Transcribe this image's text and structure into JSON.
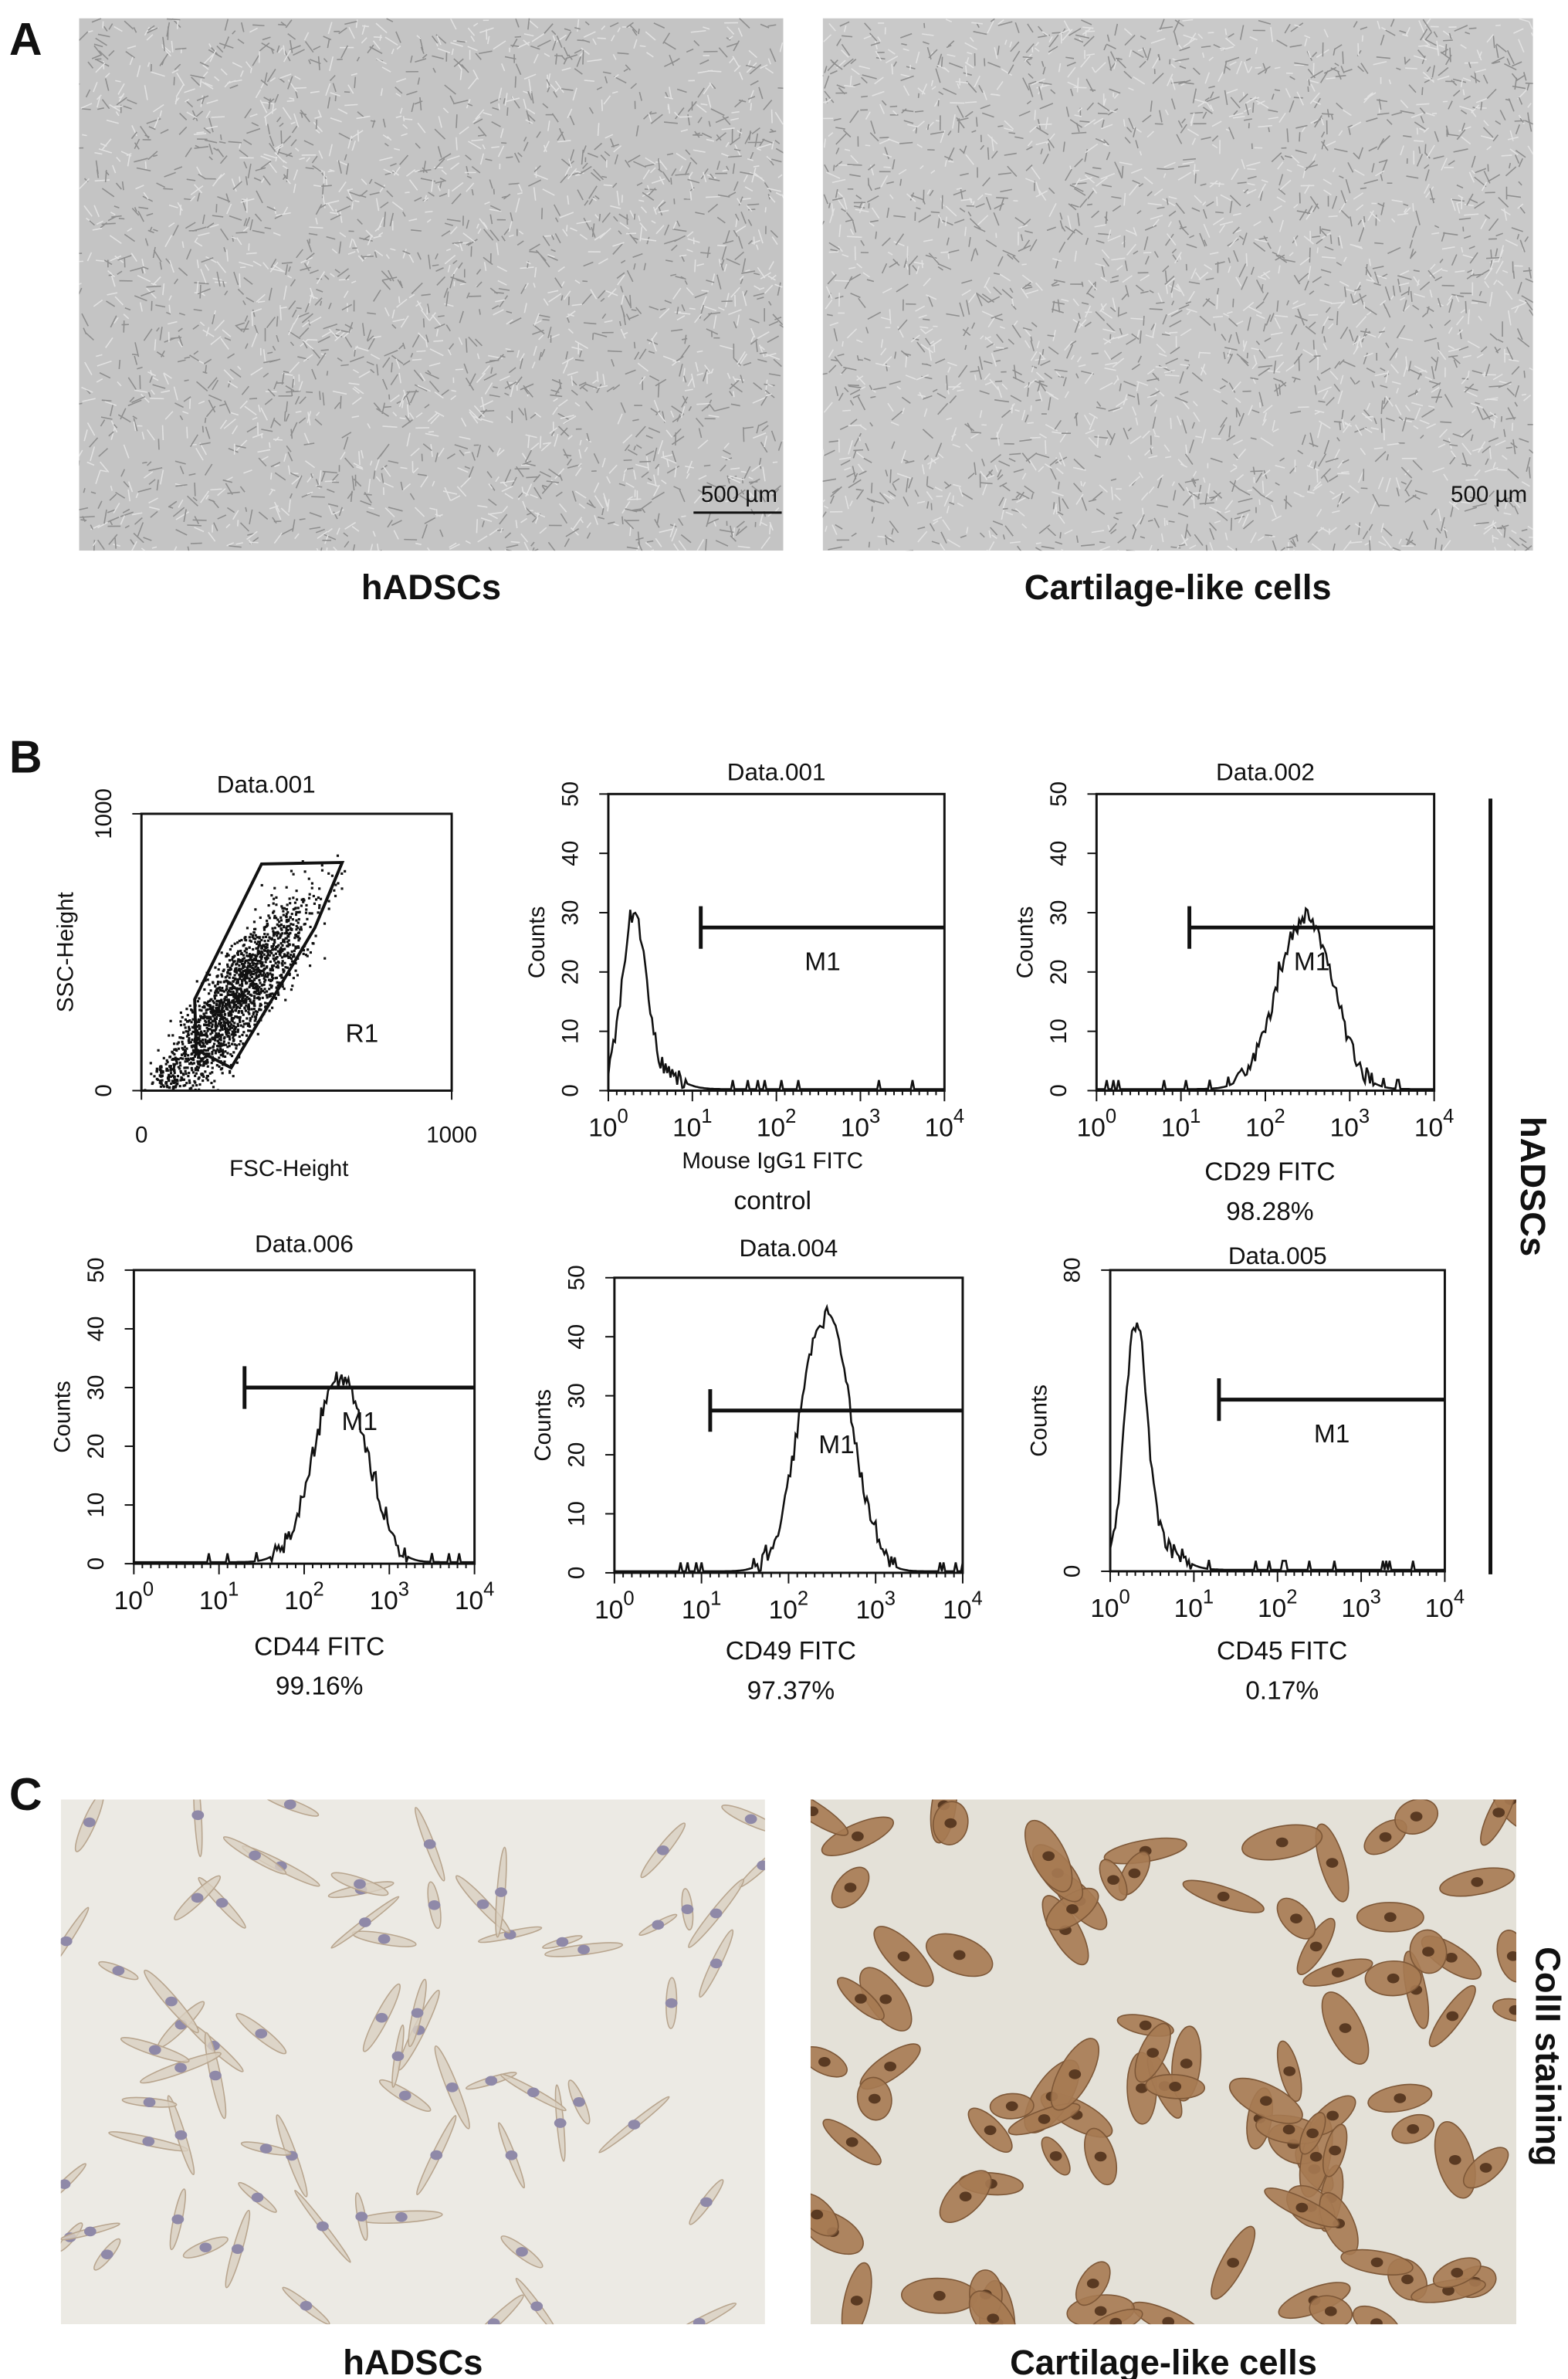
{
  "panel_a": {
    "label": "A",
    "images": [
      {
        "caption": "hADSCs",
        "scale_bar": "500 µm"
      },
      {
        "caption": "Cartilage-like cells",
        "scale_bar": "500 µm"
      }
    ]
  },
  "panel_b": {
    "label": "B",
    "side_label": "hADSCs",
    "scatter": {
      "title": "Data.001",
      "y_label": "SSC-Height",
      "x_label": "FSC-Height",
      "yticks": [
        "0",
        "1000"
      ],
      "xticks": [
        "0",
        "1000"
      ],
      "gate": "R1"
    },
    "histograms": [
      {
        "title": "Data.001",
        "y_label": "Counts",
        "yticks": [
          "0",
          "10",
          "20",
          "30",
          "40",
          "50"
        ],
        "xticks": [
          {
            "base": "10",
            "exp": "0"
          },
          {
            "base": "10",
            "exp": "1"
          },
          {
            "base": "10",
            "exp": "2"
          },
          {
            "base": "10",
            "exp": "3"
          },
          {
            "base": "10",
            "exp": "4"
          }
        ],
        "marker": "M1",
        "x_label": "Mouse IgG1 FITC",
        "note": "control"
      },
      {
        "title": "Data.002",
        "y_label": "Counts",
        "yticks": [
          "0",
          "10",
          "20",
          "30",
          "40",
          "50"
        ],
        "xticks": [
          {
            "base": "10",
            "exp": "0"
          },
          {
            "base": "10",
            "exp": "1"
          },
          {
            "base": "10",
            "exp": "2"
          },
          {
            "base": "10",
            "exp": "3"
          },
          {
            "base": "10",
            "exp": "4"
          }
        ],
        "marker": "M1",
        "x_label": "CD29 FITC",
        "note": "98.28%"
      },
      {
        "title": "Data.006",
        "y_label": "Counts",
        "yticks": [
          "0",
          "10",
          "20",
          "30",
          "40",
          "50"
        ],
        "xticks": [
          {
            "base": "10",
            "exp": "0"
          },
          {
            "base": "10",
            "exp": "1"
          },
          {
            "base": "10",
            "exp": "2"
          },
          {
            "base": "10",
            "exp": "3"
          },
          {
            "base": "10",
            "exp": "4"
          }
        ],
        "marker": "M1",
        "x_label": "CD44 FITC",
        "note": "99.16%"
      },
      {
        "title": "Data.004",
        "y_label": "Counts",
        "yticks": [
          "0",
          "10",
          "20",
          "30",
          "40",
          "50"
        ],
        "xticks": [
          {
            "base": "10",
            "exp": "0"
          },
          {
            "base": "10",
            "exp": "1"
          },
          {
            "base": "10",
            "exp": "2"
          },
          {
            "base": "10",
            "exp": "3"
          },
          {
            "base": "10",
            "exp": "4"
          }
        ],
        "marker": "M1",
        "x_label": "CD49 FITC",
        "note": "97.37%"
      },
      {
        "title": "Data.005",
        "y_label": "Counts",
        "yticks": [
          "0",
          "80"
        ],
        "xticks": [
          {
            "base": "10",
            "exp": "0"
          },
          {
            "base": "10",
            "exp": "1"
          },
          {
            "base": "10",
            "exp": "2"
          },
          {
            "base": "10",
            "exp": "3"
          },
          {
            "base": "10",
            "exp": "4"
          }
        ],
        "marker": "M1",
        "x_label": "CD45 FITC",
        "note": "0.17%"
      }
    ]
  },
  "panel_c": {
    "label": "C",
    "side_label": "ColII staining",
    "images": [
      {
        "caption": "hADSCs"
      },
      {
        "caption": "Cartilage-like cells"
      }
    ]
  }
}
